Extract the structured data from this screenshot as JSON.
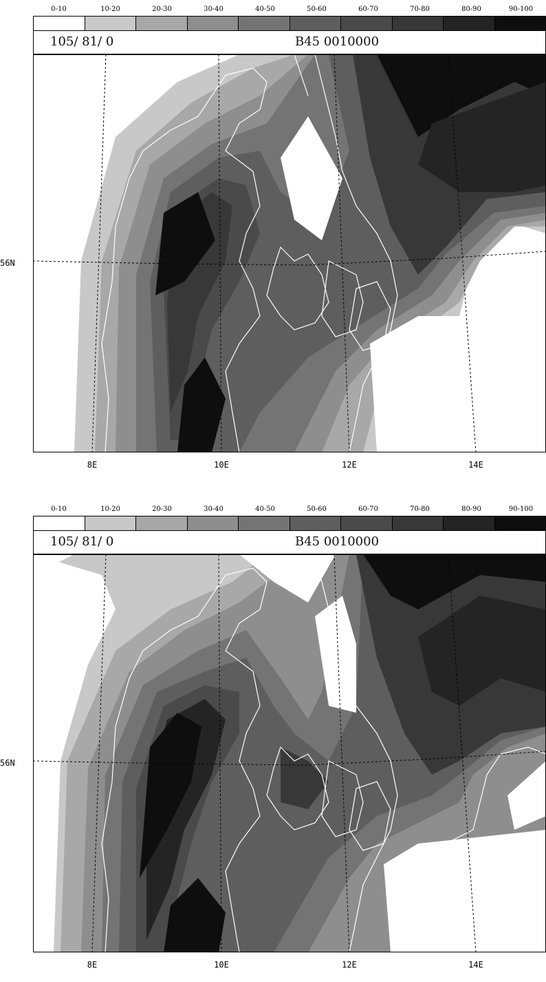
{
  "legend": {
    "classes": [
      "0-10",
      "10-20",
      "20-30",
      "30-40",
      "40-50",
      "50-60",
      "60-70",
      "70-80",
      "80-90",
      "90-100"
    ],
    "colors": [
      "#ffffff",
      "#c8c8c8",
      "#a8a8a8",
      "#8e8e8e",
      "#747474",
      "#5e5e5e",
      "#4a4a4a",
      "#383838",
      "#242424",
      "#0e0e0e"
    ]
  },
  "panels": [
    {
      "header_left": "105/ 81/  0",
      "header_right": "B45   0010000",
      "lat_labels": [
        "56N"
      ],
      "lon_labels": [
        "8E",
        "10E",
        "12E",
        "14E"
      ]
    },
    {
      "header_left": "105/ 81/  0",
      "header_right": "B45   0010000",
      "lat_labels": [
        "56N"
      ],
      "lon_labels": [
        "8E",
        "10E",
        "12E",
        "14E"
      ]
    }
  ]
}
